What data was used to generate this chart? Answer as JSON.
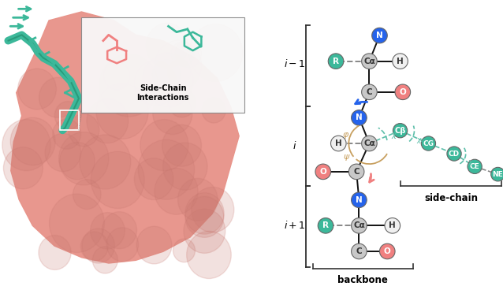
{
  "fig_width": 6.38,
  "fig_height": 3.82,
  "bg_color": "#ffffff",
  "left_panel": {
    "protein_color": "#E8948A",
    "peptide_color": "#3CB89A",
    "side_chain_label": "Side-Chain\nInteractions"
  },
  "right_panel": {
    "N_color": "#2563EB",
    "N_text": "#ffffff",
    "Ca_color": "#c8c8c8",
    "Ca_text": "#333333",
    "C_color": "#c8c8c8",
    "C_text": "#333333",
    "O_color": "#F08080",
    "O_text": "#ffffff",
    "H_color": "#f0f0f0",
    "H_text": "#333333",
    "R_color": "#3CB89A",
    "R_text": "#ffffff",
    "CB_color": "#3CB89A",
    "CB_text": "#ffffff",
    "CG_color": "#3CB89A",
    "CG_text": "#ffffff",
    "CD_color": "#3CB89A",
    "CD_text": "#ffffff",
    "CE_color": "#3CB89A",
    "CE_text": "#ffffff",
    "NE_color": "#3CB89A",
    "NE_text": "#ffffff",
    "phi_color": "#C8A060",
    "psi_color": "#C8A060",
    "chi_color": "#5DBFAA",
    "psi_arrow_color": "#F08080",
    "N_arrow_color": "#2563EB",
    "row_im1_label": "$i-1$",
    "row_i_label": "$i$",
    "row_ip1_label": "$i+1$",
    "backbone_label": "backbone",
    "sidechain_label": "side-chain"
  }
}
